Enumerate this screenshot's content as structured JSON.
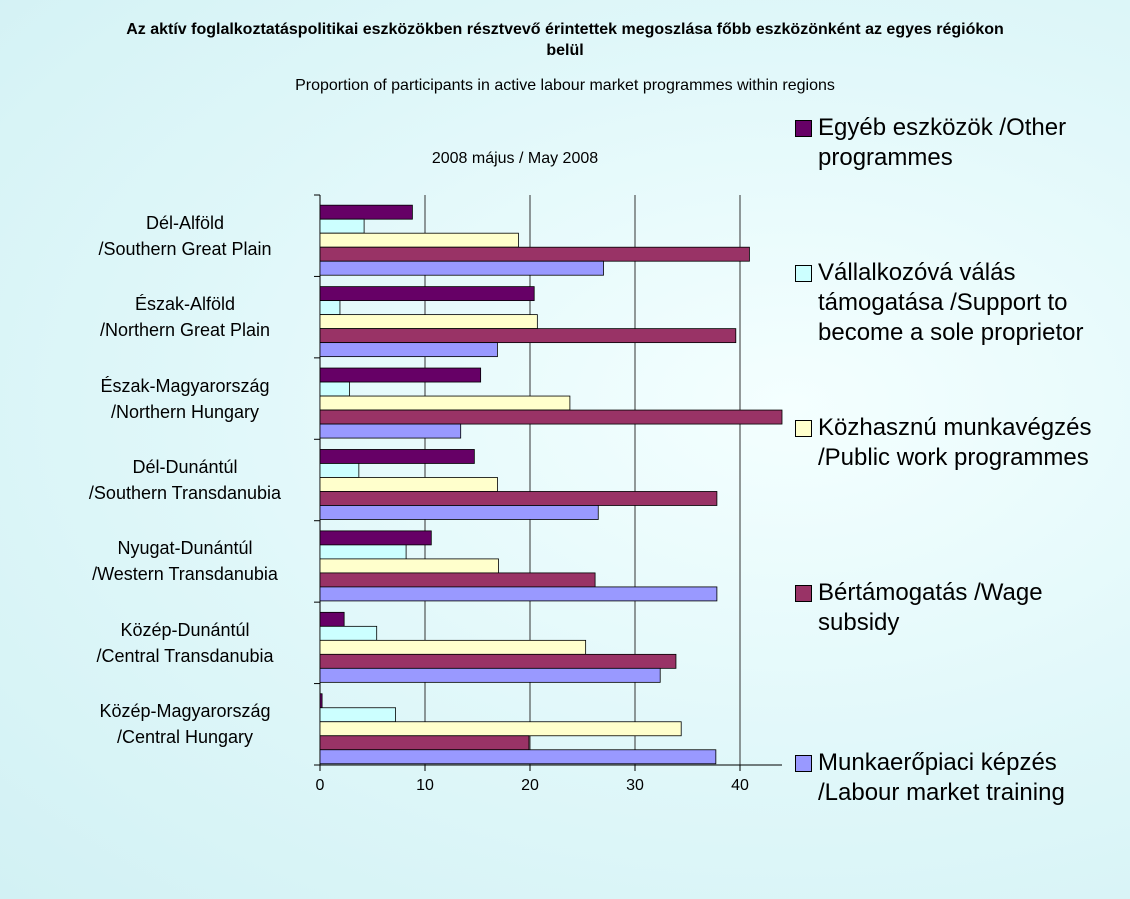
{
  "chart_data": {
    "type": "hbar",
    "title": "Az aktív foglalkoztatáspolitikai eszközökben résztvevő érintettek megoszlása főbb eszközönként az egyes régiókon belül",
    "subtitle": "Proportion of participants in active labour market programmes within regions",
    "annotation": "2008 május / May 2008",
    "categories": [
      "Dél-Alföld\n/Southern Great Plain",
      "Észak-Alföld\n/Northern Great Plain",
      "Észak-Magyarország\n/Northern Hungary",
      "Dél-Dunántúl\n/Southern Transdanubia",
      "Nyugat-Dunántúl\n/Western Transdanubia",
      "Közép-Dunántúl\n/Central Transdanubia",
      "Közép-Magyarország\n/Central Hungary"
    ],
    "series": [
      {
        "name": "Egyéb eszközök /Other programmes",
        "color": "#660066",
        "values": [
          8.8,
          20.4,
          15.3,
          14.7,
          10.6,
          2.3,
          0.2
        ]
      },
      {
        "name": "Vállalkozóvá válás támogatása /Support to become a sole proprietor",
        "color": "#ccffff",
        "values": [
          4.2,
          1.9,
          2.8,
          3.7,
          8.2,
          5.4,
          7.2
        ]
      },
      {
        "name": "Közhasznú munkavégzés /Public work programmes",
        "color": "#ffffcc",
        "values": [
          18.9,
          20.7,
          23.8,
          16.9,
          17.0,
          25.3,
          34.4
        ]
      },
      {
        "name": "Bértámogatás /Wage subsidy",
        "color": "#993366",
        "values": [
          40.9,
          39.6,
          44.0,
          37.8,
          26.2,
          33.9,
          19.9
        ]
      },
      {
        "name": "Munkaerőpiaci képzés /Labour market training",
        "color": "#9999ff",
        "values": [
          27.0,
          16.9,
          13.4,
          26.5,
          37.8,
          32.4,
          37.7
        ]
      }
    ],
    "xlim": [
      0,
      44
    ],
    "xticks": [
      0,
      10,
      20,
      30,
      40
    ],
    "grid": true,
    "legend": "right"
  }
}
